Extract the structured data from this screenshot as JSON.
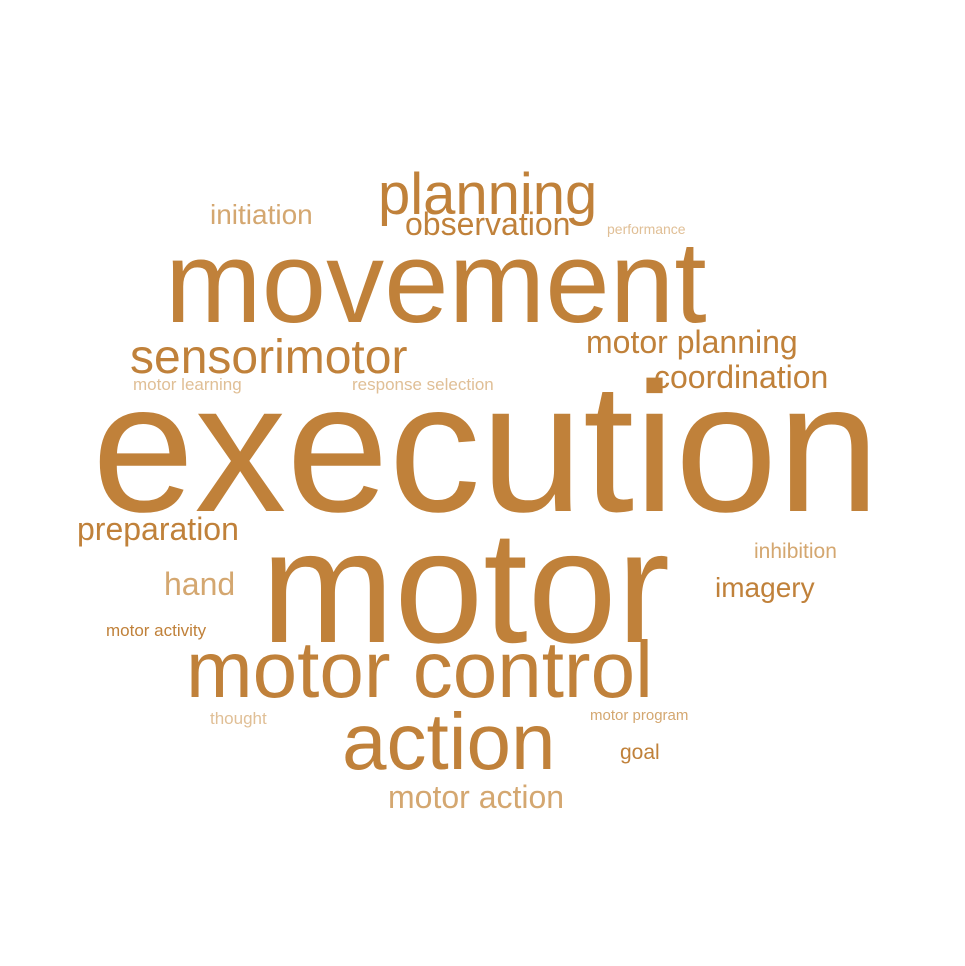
{
  "colors": {
    "word": "#c0813a",
    "word_light": "#d4a770",
    "word_faint": "#e0bf96"
  },
  "words": {
    "execution": "execution",
    "motor": "motor",
    "movement": "movement",
    "motor_control": "motor control",
    "action": "action",
    "planning": "planning",
    "sensorimotor": "sensorimotor",
    "observation": "observation",
    "initiation": "initiation",
    "performance": "performance",
    "motor_planning": "motor planning",
    "coordination": "coordination",
    "motor_learning": "motor learning",
    "response_selection": "response selection",
    "preparation": "preparation",
    "inhibition": "inhibition",
    "hand": "hand",
    "imagery": "imagery",
    "motor_activity": "motor activity",
    "thought": "thought",
    "motor_program": "motor program",
    "goal": "goal",
    "motor_action": "motor action"
  }
}
